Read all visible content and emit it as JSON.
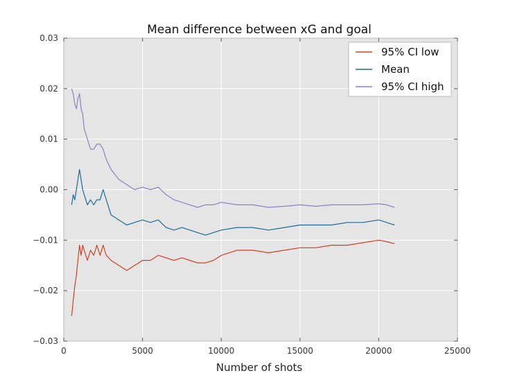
{
  "chart_data": {
    "type": "line",
    "title": "Mean difference between xG and goal",
    "xlabel": "Number of shots",
    "ylabel": "",
    "xlim": [
      0,
      25000
    ],
    "ylim": [
      -0.03,
      0.03
    ],
    "x_ticks": [
      0,
      5000,
      10000,
      15000,
      20000,
      25000
    ],
    "x_tick_labels": [
      "0",
      "5000",
      "10000",
      "15000",
      "20000",
      "25000"
    ],
    "y_ticks": [
      -0.03,
      -0.02,
      -0.01,
      0.0,
      0.01,
      0.02,
      0.03
    ],
    "y_tick_labels": [
      "−0.03",
      "−0.02",
      "−0.01",
      "0.00",
      "0.01",
      "0.02",
      "0.03"
    ],
    "grid": true,
    "legend_position": "top-right",
    "series": [
      {
        "name": "95% CI low",
        "color": "#d04020",
        "x": [
          500,
          600,
          700,
          800,
          900,
          1000,
          1100,
          1200,
          1300,
          1500,
          1700,
          1900,
          2100,
          2300,
          2500,
          2700,
          3000,
          3500,
          4000,
          4500,
          5000,
          5500,
          6000,
          6500,
          7000,
          7500,
          8000,
          8500,
          9000,
          9500,
          10000,
          11000,
          12000,
          13000,
          14000,
          15000,
          16000,
          17000,
          18000,
          19000,
          20000,
          20500,
          21000
        ],
        "y": [
          -0.025,
          -0.022,
          -0.019,
          -0.017,
          -0.014,
          -0.011,
          -0.013,
          -0.011,
          -0.012,
          -0.014,
          -0.012,
          -0.013,
          -0.011,
          -0.013,
          -0.011,
          -0.013,
          -0.014,
          -0.015,
          -0.016,
          -0.015,
          -0.014,
          -0.014,
          -0.013,
          -0.0135,
          -0.014,
          -0.0135,
          -0.014,
          -0.0145,
          -0.0145,
          -0.014,
          -0.013,
          -0.012,
          -0.012,
          -0.0125,
          -0.012,
          -0.0115,
          -0.0115,
          -0.011,
          -0.011,
          -0.0105,
          -0.01,
          -0.0103,
          -0.0107
        ]
      },
      {
        "name": "Mean",
        "color": "#1d6a96",
        "x": [
          500,
          600,
          700,
          800,
          900,
          1000,
          1100,
          1200,
          1300,
          1500,
          1700,
          1900,
          2100,
          2300,
          2500,
          2700,
          3000,
          3500,
          4000,
          4500,
          5000,
          5500,
          6000,
          6500,
          7000,
          7500,
          8000,
          8500,
          9000,
          9500,
          10000,
          11000,
          12000,
          13000,
          14000,
          15000,
          16000,
          17000,
          18000,
          19000,
          20000,
          20500,
          21000
        ],
        "y": [
          -0.003,
          -0.001,
          -0.002,
          0.0,
          0.002,
          0.004,
          0.002,
          0.0,
          -0.001,
          -0.003,
          -0.002,
          -0.003,
          -0.002,
          -0.002,
          0.0,
          -0.002,
          -0.005,
          -0.006,
          -0.007,
          -0.0065,
          -0.006,
          -0.0065,
          -0.006,
          -0.0075,
          -0.008,
          -0.0075,
          -0.008,
          -0.0085,
          -0.009,
          -0.0085,
          -0.008,
          -0.0075,
          -0.0075,
          -0.008,
          -0.0075,
          -0.007,
          -0.007,
          -0.007,
          -0.0065,
          -0.0065,
          -0.006,
          -0.0065,
          -0.007
        ]
      },
      {
        "name": "95% CI high",
        "color": "#8b7fc4",
        "x": [
          500,
          600,
          700,
          800,
          900,
          1000,
          1100,
          1200,
          1300,
          1500,
          1700,
          1900,
          2100,
          2300,
          2500,
          2700,
          3000,
          3500,
          4000,
          4500,
          5000,
          5500,
          6000,
          6500,
          7000,
          7500,
          8000,
          8500,
          9000,
          9500,
          10000,
          11000,
          12000,
          13000,
          14000,
          15000,
          16000,
          17000,
          18000,
          19000,
          20000,
          20500,
          21000
        ],
        "y": [
          0.02,
          0.019,
          0.017,
          0.016,
          0.018,
          0.019,
          0.016,
          0.015,
          0.012,
          0.01,
          0.008,
          0.008,
          0.009,
          0.009,
          0.008,
          0.006,
          0.004,
          0.002,
          0.001,
          0.0,
          0.0005,
          0.0,
          0.0005,
          -0.001,
          -0.002,
          -0.0025,
          -0.003,
          -0.0035,
          -0.003,
          -0.003,
          -0.0025,
          -0.003,
          -0.003,
          -0.0035,
          -0.0033,
          -0.003,
          -0.0033,
          -0.003,
          -0.003,
          -0.003,
          -0.0028,
          -0.003,
          -0.0035
        ]
      }
    ]
  }
}
